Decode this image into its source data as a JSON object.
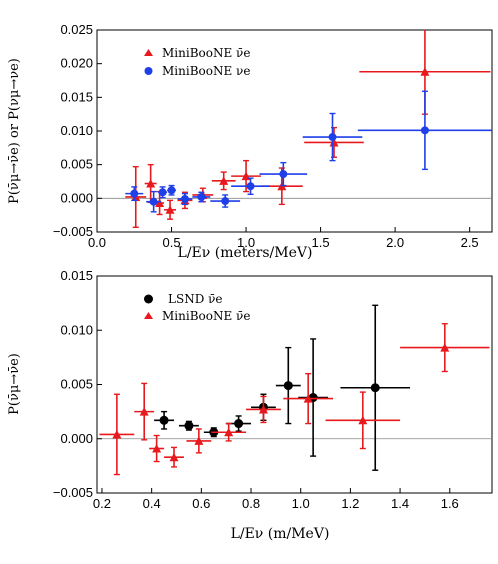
{
  "chart_data": [
    {
      "type": "scatter",
      "xlabel": "L/Eν (meters/MeV)",
      "ylabel": "P(ν̄μ→ν̄e) or P(νμ→νe)",
      "xlim": [
        0.0,
        2.65
      ],
      "ylim": [
        -0.005,
        0.025
      ],
      "xticks": [
        "0.0",
        "0.5",
        "1.0",
        "1.5",
        "2.0",
        "2.5"
      ],
      "yticks": [
        "−0.005",
        "0.000",
        "0.005",
        "0.010",
        "0.015",
        "0.020",
        "0.025"
      ],
      "zero_line": true,
      "legend": "top-left",
      "series": [
        {
          "name": "MiniBooNE ν̄e",
          "color": "#e8191c",
          "marker": "triangle",
          "points": [
            {
              "x": 0.26,
              "y": 0.0002,
              "xerr": 0.07,
              "yerr": 0.0045
            },
            {
              "x": 0.36,
              "y": 0.0022,
              "xerr": 0.04,
              "yerr": 0.0028
            },
            {
              "x": 0.42,
              "y": -0.0007,
              "xerr": 0.03,
              "yerr": 0.0017
            },
            {
              "x": 0.49,
              "y": -0.0017,
              "xerr": 0.04,
              "yerr": 0.0014
            },
            {
              "x": 0.59,
              "y": -0.0003,
              "xerr": 0.05,
              "yerr": 0.0012
            },
            {
              "x": 0.71,
              "y": 0.0005,
              "xerr": 0.07,
              "yerr": 0.001
            },
            {
              "x": 0.85,
              "y": 0.0026,
              "xerr": 0.08,
              "yerr": 0.0013
            },
            {
              "x": 1.0,
              "y": 0.0033,
              "xerr": 0.1,
              "yerr": 0.0023
            },
            {
              "x": 1.24,
              "y": 0.0018,
              "xerr": 0.14,
              "yerr": 0.0027
            },
            {
              "x": 1.59,
              "y": 0.0083,
              "xerr": 0.2,
              "yerr": 0.0022
            },
            {
              "x": 2.2,
              "y": 0.0188,
              "xerr": 0.44,
              "yerr": 0.0063
            }
          ]
        },
        {
          "name": "MiniBooNE νe",
          "color": "#1f3fe8",
          "marker": "circle",
          "points": [
            {
              "x": 0.25,
              "y": 0.0007,
              "xerr": 0.06,
              "yerr": 0.001
            },
            {
              "x": 0.38,
              "y": -0.0005,
              "xerr": 0.05,
              "yerr": 0.0015
            },
            {
              "x": 0.44,
              "y": 0.0009,
              "xerr": 0.03,
              "yerr": 0.0008
            },
            {
              "x": 0.5,
              "y": 0.0012,
              "xerr": 0.03,
              "yerr": 0.0007
            },
            {
              "x": 0.59,
              "y": -0.0001,
              "xerr": 0.05,
              "yerr": 0.0008
            },
            {
              "x": 0.7,
              "y": 0.0002,
              "xerr": 0.06,
              "yerr": 0.0007
            },
            {
              "x": 0.86,
              "y": -0.0004,
              "xerr": 0.1,
              "yerr": 0.0009
            },
            {
              "x": 1.03,
              "y": 0.0018,
              "xerr": 0.13,
              "yerr": 0.0012
            },
            {
              "x": 1.25,
              "y": 0.0036,
              "xerr": 0.16,
              "yerr": 0.0017
            },
            {
              "x": 1.58,
              "y": 0.0091,
              "xerr": 0.2,
              "yerr": 0.0035
            },
            {
              "x": 2.2,
              "y": 0.0101,
              "xerr": 0.45,
              "yerr": 0.0058
            }
          ]
        }
      ]
    },
    {
      "type": "scatter",
      "xlabel": "L/Eν (m/MeV)",
      "ylabel": "P(ν̄μ→ν̄e)",
      "xlim": [
        0.18,
        1.77
      ],
      "ylim": [
        -0.005,
        0.015
      ],
      "xticks": [
        "0.2",
        "0.4",
        "0.6",
        "0.8",
        "1.0",
        "1.2",
        "1.4",
        "1.6"
      ],
      "yticks": [
        "−0.005",
        "0.000",
        "0.005",
        "0.010",
        "0.015"
      ],
      "zero_line": true,
      "legend": "top-left",
      "series": [
        {
          "name": "LSND ν̄e",
          "color": "#000000",
          "marker": "circle",
          "points": [
            {
              "x": 0.45,
              "y": 0.0017,
              "xerr": 0.04,
              "yerr": 0.0008
            },
            {
              "x": 0.55,
              "y": 0.0012,
              "xerr": 0.04,
              "yerr": 0.0004
            },
            {
              "x": 0.65,
              "y": 0.0006,
              "xerr": 0.04,
              "yerr": 0.0004
            },
            {
              "x": 0.75,
              "y": 0.0014,
              "xerr": 0.05,
              "yerr": 0.0007
            },
            {
              "x": 0.85,
              "y": 0.0029,
              "xerr": 0.05,
              "yerr": 0.0012
            },
            {
              "x": 0.95,
              "y": 0.0049,
              "xerr": 0.05,
              "yerr": 0.0035
            },
            {
              "x": 1.05,
              "y": 0.0038,
              "xerr": 0.06,
              "yerr": 0.0054
            },
            {
              "x": 1.3,
              "y": 0.0047,
              "xerr": 0.14,
              "yerr": 0.0076
            }
          ]
        },
        {
          "name": "MiniBooNE ν̄e",
          "color": "#e8191c",
          "marker": "triangle",
          "points": [
            {
              "x": 0.26,
              "y": 0.0004,
              "xerr": 0.07,
              "yerr": 0.0037
            },
            {
              "x": 0.37,
              "y": 0.0025,
              "xerr": 0.04,
              "yerr": 0.0026
            },
            {
              "x": 0.42,
              "y": -0.0009,
              "xerr": 0.03,
              "yerr": 0.0012
            },
            {
              "x": 0.49,
              "y": -0.0017,
              "xerr": 0.04,
              "yerr": 0.0009
            },
            {
              "x": 0.59,
              "y": -0.0002,
              "xerr": 0.05,
              "yerr": 0.0011
            },
            {
              "x": 0.71,
              "y": 0.0006,
              "xerr": 0.07,
              "yerr": 0.0008
            },
            {
              "x": 0.85,
              "y": 0.0027,
              "xerr": 0.07,
              "yerr": 0.0012
            },
            {
              "x": 1.03,
              "y": 0.0037,
              "xerr": 0.1,
              "yerr": 0.0023
            },
            {
              "x": 1.25,
              "y": 0.0017,
              "xerr": 0.15,
              "yerr": 0.0026
            },
            {
              "x": 1.58,
              "y": 0.0084,
              "xerr": 0.18,
              "yerr": 0.0022
            }
          ]
        }
      ]
    }
  ]
}
